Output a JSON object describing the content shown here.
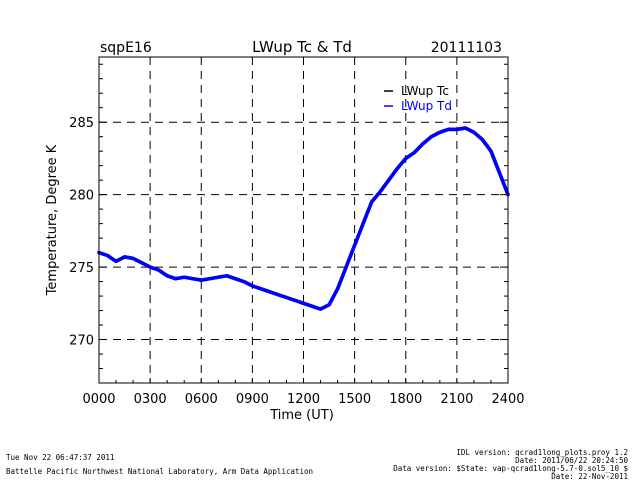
{
  "header": {
    "site": "sqpE16",
    "title": "LWup Tc & Td",
    "date": "20111103"
  },
  "footer": {
    "generated": "Tue Nov 22 06:47:37 2011",
    "lab": "Battelle Pacific Northwest National Laboratory, Arm Data Application",
    "idl_version": "IDL version: qcrad1long_plots.proy 1.2",
    "idl_date": "Date: 2011/06/22 20:24:50",
    "data_version": "Data version: $State: vap-qcrad1long-5.7-0.sol5_10 $",
    "data_date": "Date: 22-Nov-2011"
  },
  "chart_data": {
    "type": "line",
    "title": "LWup Tc & Td",
    "xlabel": "Time (UT)",
    "ylabel": "Temperature, Degree K",
    "xlim": [
      0,
      2400
    ],
    "ylim": [
      267,
      289.5
    ],
    "x_ticks": [
      "0000",
      "0300",
      "0600",
      "0900",
      "1200",
      "1500",
      "1800",
      "2100",
      "2400"
    ],
    "y_ticks": [
      270,
      275,
      280,
      285
    ],
    "grid": true,
    "legend_position": "top-right",
    "series": [
      {
        "name": "LWup Tc",
        "color": "#000000",
        "x": [
          0,
          50,
          100,
          150,
          200,
          250,
          300,
          350,
          400,
          450,
          500,
          550,
          600,
          650,
          700,
          750,
          800,
          850,
          900,
          950,
          1000,
          1050,
          1100,
          1150,
          1200,
          1250,
          1300,
          1350,
          1400,
          1450,
          1500,
          1550,
          1600,
          1650,
          1700,
          1750,
          1800,
          1850,
          1900,
          1950,
          2000,
          2050,
          2100,
          2150,
          2200,
          2250,
          2300,
          2350,
          2400
        ],
        "values": [
          276.0,
          275.8,
          275.4,
          275.7,
          275.6,
          275.3,
          275.0,
          274.8,
          274.4,
          274.2,
          274.3,
          274.2,
          274.1,
          274.2,
          274.3,
          274.4,
          274.2,
          274.0,
          273.7,
          273.5,
          273.3,
          273.1,
          272.9,
          272.7,
          272.5,
          272.3,
          272.1,
          272.4,
          273.5,
          275.0,
          276.5,
          278.0,
          279.5,
          280.2,
          281.0,
          281.8,
          282.5,
          282.9,
          283.5,
          284.0,
          284.3,
          284.5,
          284.5,
          284.6,
          284.3,
          283.8,
          283.0,
          281.5,
          280.0
        ]
      },
      {
        "name": "LWup Td",
        "color": "#0000ff",
        "x": [
          0,
          50,
          100,
          150,
          200,
          250,
          300,
          350,
          400,
          450,
          500,
          550,
          600,
          650,
          700,
          750,
          800,
          850,
          900,
          950,
          1000,
          1050,
          1100,
          1150,
          1200,
          1250,
          1300,
          1350,
          1400,
          1450,
          1500,
          1550,
          1600,
          1650,
          1700,
          1750,
          1800,
          1850,
          1900,
          1950,
          2000,
          2050,
          2100,
          2150,
          2200,
          2250,
          2300,
          2350,
          2400
        ],
        "values": [
          276.0,
          275.8,
          275.4,
          275.7,
          275.6,
          275.3,
          275.0,
          274.8,
          274.4,
          274.2,
          274.3,
          274.2,
          274.1,
          274.2,
          274.3,
          274.4,
          274.2,
          274.0,
          273.7,
          273.5,
          273.3,
          273.1,
          272.9,
          272.7,
          272.5,
          272.3,
          272.1,
          272.4,
          273.5,
          275.0,
          276.5,
          278.0,
          279.5,
          280.2,
          281.0,
          281.8,
          282.5,
          282.9,
          283.5,
          284.0,
          284.3,
          284.5,
          284.5,
          284.6,
          284.3,
          283.8,
          283.0,
          281.5,
          280.0
        ]
      }
    ]
  }
}
